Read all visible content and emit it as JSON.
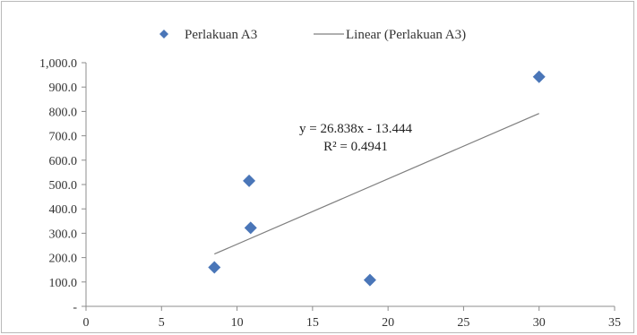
{
  "chart_data": {
    "type": "scatter",
    "series": [
      {
        "name": "Perlakuan A3",
        "color": "#4a76b8",
        "marker": "diamond",
        "points": [
          {
            "x": 8.5,
            "y": 160
          },
          {
            "x": 10.8,
            "y": 515
          },
          {
            "x": 10.9,
            "y": 322
          },
          {
            "x": 18.8,
            "y": 108
          },
          {
            "x": 30.0,
            "y": 942
          }
        ]
      }
    ],
    "trendline": {
      "name": "Linear (Perlakuan A3)",
      "type": "linear",
      "slope": 26.838,
      "intercept": -13.444,
      "x_range": [
        8.5,
        30.0
      ],
      "equation": "y = 26.838x - 13.444",
      "r_squared": "R² = 0.4941",
      "color": "#7f7f7f"
    },
    "xlim": [
      0,
      35
    ],
    "ylim": [
      0,
      1000
    ],
    "x_ticks": [
      {
        "value": 0,
        "label": "0"
      },
      {
        "value": 5,
        "label": "5"
      },
      {
        "value": 10,
        "label": "10"
      },
      {
        "value": 15,
        "label": "15"
      },
      {
        "value": 20,
        "label": "20"
      },
      {
        "value": 25,
        "label": "25"
      },
      {
        "value": 30,
        "label": "30"
      },
      {
        "value": 35,
        "label": "35"
      }
    ],
    "y_ticks": [
      {
        "value": 0,
        "label": "-"
      },
      {
        "value": 100,
        "label": "100.0"
      },
      {
        "value": 200,
        "label": "200.0"
      },
      {
        "value": 300,
        "label": "300.0"
      },
      {
        "value": 400,
        "label": "400.0"
      },
      {
        "value": 500,
        "label": "500.0"
      },
      {
        "value": 600,
        "label": "600.0"
      },
      {
        "value": 700,
        "label": "700.0"
      },
      {
        "value": 800,
        "label": "800.0"
      },
      {
        "value": 900,
        "label": "900.0"
      },
      {
        "value": 1000,
        "label": "1,000.0"
      }
    ],
    "grid": false,
    "legend_position": "top-center"
  }
}
